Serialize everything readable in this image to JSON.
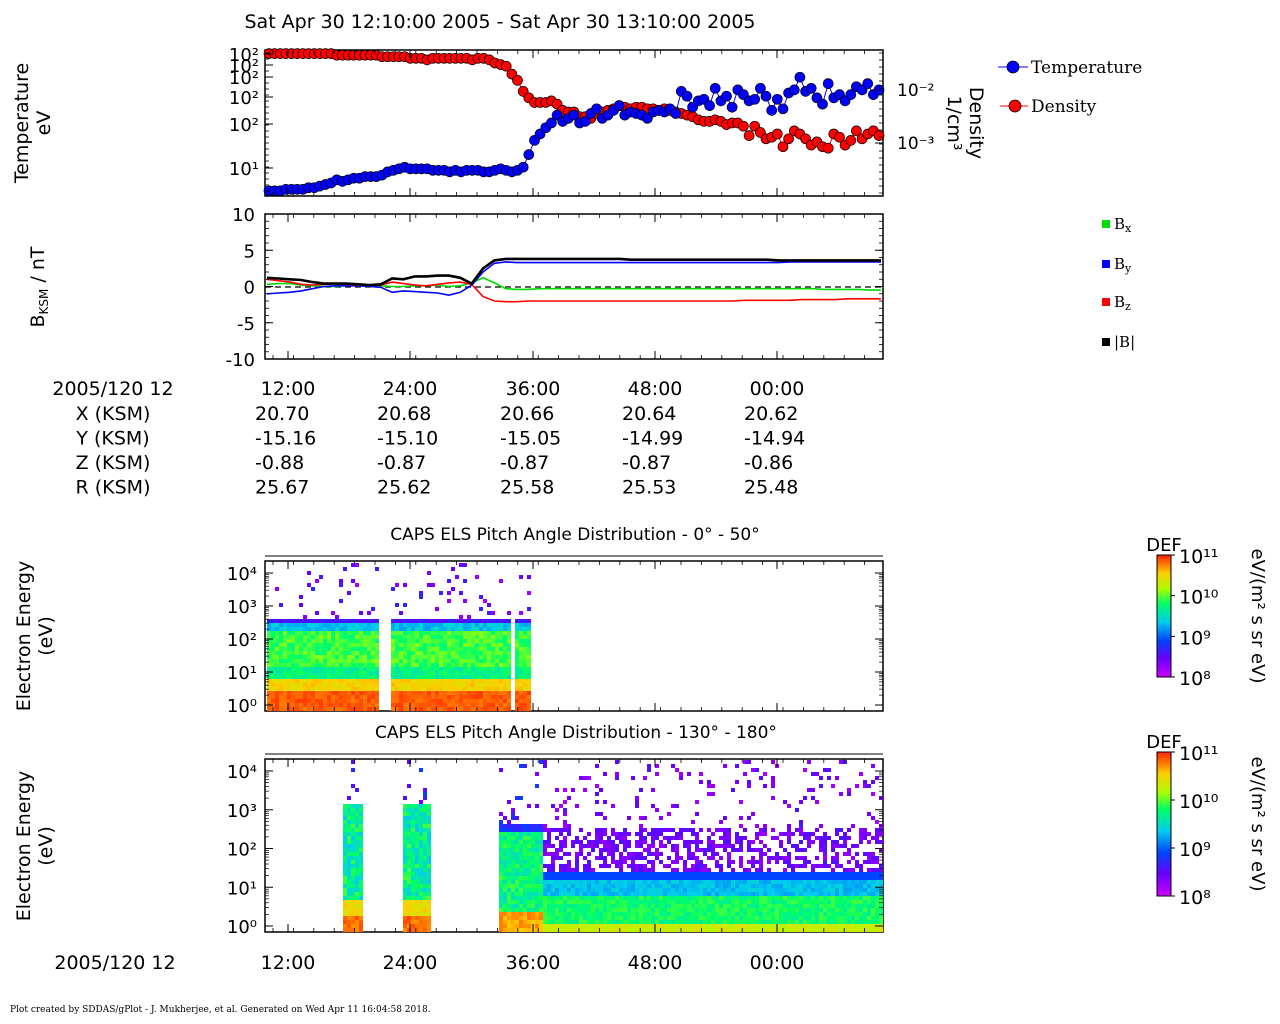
{
  "title": "Sat Apr 30 12:10:00 2005 - Sat Apr 30 13:10:00 2005",
  "footer": "Plot created by SDDAS/gPlot - J. Mukherjee, et al.  Generated on Wed Apr 11 16:04:58 2018.",
  "colors": {
    "temperature": "#0000ff",
    "density": "#ff0000",
    "bx": "#00dd00",
    "by": "#0000ff",
    "bz": "#ff0000",
    "btot": "#000000"
  },
  "ephemeris": {
    "date_label": "2005/120 12",
    "rows": [
      {
        "label": "X (KSM)",
        "values": [
          "20.70",
          "20.68",
          "20.66",
          "20.64",
          "20.62"
        ]
      },
      {
        "label": "Y (KSM)",
        "values": [
          "-15.16",
          "-15.10",
          "-15.05",
          "-14.99",
          "-14.94"
        ]
      },
      {
        "label": "Z (KSM)",
        "values": [
          "-0.88",
          "-0.87",
          "-0.87",
          "-0.87",
          "-0.86"
        ]
      },
      {
        "label": "R (KSM)",
        "values": [
          "25.67",
          "25.62",
          "25.58",
          "25.53",
          "25.48"
        ]
      }
    ]
  },
  "chart_data": [
    {
      "type": "scatter",
      "panel": "temperature-density",
      "ylabel": [
        "Temperature",
        "eV"
      ],
      "y2label": [
        "Density",
        "1/cm³"
      ],
      "yticks": [
        "10²",
        "10²",
        "10²",
        "10²",
        "10²",
        "10¹"
      ],
      "y2ticks": [
        "10⁻²",
        "10⁻³"
      ],
      "legend": [
        "Temperature",
        "Density"
      ],
      "x_minutes": [
        0,
        60
      ],
      "temperature_series": [
        1.2,
        1.2,
        1.2,
        1.3,
        1.3,
        1.3,
        1.3,
        1.4,
        1.4,
        1.5,
        1.6,
        1.7,
        1.9,
        1.8,
        1.9,
        2.0,
        2.0,
        2.1,
        2.1,
        2.1,
        2.2,
        2.4,
        2.5,
        2.6,
        2.7,
        2.6,
        2.6,
        2.6,
        2.6,
        2.5,
        2.5,
        2.5,
        2.4,
        2.5,
        2.4,
        2.5,
        2.5,
        2.5,
        2.4,
        2.4,
        2.5,
        2.6,
        2.5,
        2.4,
        2.5,
        2.7,
        3.5,
        4.4,
        4.8,
        5.2,
        5.5,
        6.0,
        5.6,
        5.8,
        6.0,
        5.5,
        5.6,
        6.1,
        6.4,
        5.8,
        6.0,
        6.3,
        6.6,
        6.0,
        6.2,
        6.1,
        6.0,
        5.8,
        6.2,
        6.3,
        6.2,
        6.4,
        6.1,
        7.5,
        7.2,
        6.5,
        6.9,
        7.0,
        6.6,
        7.7,
        6.9,
        7.2,
        6.5,
        7.6,
        7.3,
        6.9,
        7.0,
        7.7,
        7.2,
        6.3,
        7.0,
        6.4,
        7.4,
        7.6,
        8.4,
        7.5,
        7.7,
        7.1,
        6.7,
        8.0,
        7.1,
        7.3,
        6.9,
        7.3,
        7.8,
        7.6,
        8.0,
        7.3,
        7.6
      ],
      "density_series": [
        9.9,
        9.9,
        9.9,
        9.9,
        9.9,
        9.9,
        9.9,
        9.9,
        9.9,
        9.9,
        9.9,
        9.9,
        9.8,
        9.8,
        9.8,
        9.8,
        9.8,
        9.8,
        9.8,
        9.8,
        9.7,
        9.7,
        9.7,
        9.7,
        9.7,
        9.6,
        9.6,
        9.6,
        9.5,
        9.6,
        9.6,
        9.6,
        9.6,
        9.6,
        9.6,
        9.6,
        9.5,
        9.6,
        9.6,
        9.5,
        9.3,
        9.2,
        9.1,
        8.6,
        8.2,
        7.5,
        7.1,
        6.8,
        6.8,
        6.8,
        6.9,
        6.7,
        6.3,
        6.2,
        6.2,
        5.9,
        5.9,
        5.8,
        6.1,
        6.2,
        6.3,
        6.4,
        6.6,
        6.5,
        6.4,
        6.5,
        6.5,
        6.4,
        6.4,
        6.3,
        6.4,
        6.3,
        6.2,
        6.1,
        6.0,
        5.9,
        5.7,
        5.6,
        5.6,
        5.7,
        5.6,
        5.4,
        5.5,
        5.5,
        5.3,
        4.7,
        5.3,
        4.9,
        4.5,
        4.6,
        4.8,
        4.0,
        4.5,
        5.0,
        4.8,
        4.5,
        4.1,
        4.3,
        4.0,
        3.9,
        4.8,
        4.6,
        4.1,
        4.4,
        5.0,
        4.5,
        4.8,
        5.0,
        4.7
      ]
    },
    {
      "type": "line",
      "panel": "magnetic-field",
      "ylabel": "BKSM / nT",
      "ylim": [
        -10,
        10
      ],
      "yticks": [
        "10",
        "5",
        "0",
        "-5",
        "-10"
      ],
      "series": [
        {
          "name": "Bx",
          "values": [
            0.3,
            0.4,
            0.4,
            0.2,
            0.1,
            0.0,
            0.0,
            0.1,
            0.2,
            0.1,
            0.1,
            0.0,
            0.0,
            0.1,
            0.1,
            0.2,
            0.0,
            0.1,
            0.5,
            1.2,
            0.5,
            -0.3,
            -0.4,
            -0.4,
            -0.3,
            -0.3,
            -0.3,
            -0.3,
            -0.3,
            -0.3,
            -0.3,
            -0.3,
            -0.3,
            -0.3,
            -0.3,
            -0.3,
            -0.3,
            -0.3,
            -0.3,
            -0.3,
            -0.3,
            -0.3,
            -0.3,
            -0.3,
            -0.3,
            -0.3,
            -0.3,
            -0.3,
            -0.3,
            -0.4,
            -0.4,
            -0.4,
            -0.4,
            -0.5,
            -0.5
          ]
        },
        {
          "name": "By",
          "values": [
            -1.0,
            -0.9,
            -0.8,
            -0.6,
            -0.3,
            0.0,
            0.1,
            0.1,
            0.1,
            0.0,
            -0.1,
            -0.8,
            -0.6,
            -0.7,
            -0.8,
            -0.9,
            -1.2,
            -0.8,
            0.2,
            2.0,
            3.2,
            3.4,
            3.3,
            3.3,
            3.3,
            3.3,
            3.3,
            3.3,
            3.3,
            3.3,
            3.3,
            3.3,
            3.3,
            3.3,
            3.3,
            3.3,
            3.3,
            3.3,
            3.3,
            3.3,
            3.3,
            3.3,
            3.3,
            3.3,
            3.3,
            3.3,
            3.4,
            3.4,
            3.4,
            3.4,
            3.4,
            3.4,
            3.4,
            3.4,
            3.4
          ]
        },
        {
          "name": "Bz",
          "values": [
            1.0,
            0.8,
            0.6,
            0.3,
            0.2,
            0.3,
            0.4,
            0.3,
            0.2,
            0.2,
            0.2,
            0.6,
            0.4,
            0.2,
            0.1,
            0.3,
            0.5,
            0.6,
            0.3,
            -1.4,
            -2.0,
            -2.1,
            -2.1,
            -2.0,
            -2.0,
            -2.0,
            -2.0,
            -2.0,
            -2.0,
            -2.0,
            -2.0,
            -2.0,
            -2.0,
            -2.0,
            -2.0,
            -2.0,
            -2.0,
            -2.0,
            -2.0,
            -2.0,
            -2.0,
            -2.0,
            -1.9,
            -1.9,
            -1.9,
            -1.9,
            -1.9,
            -1.8,
            -1.8,
            -1.8,
            -1.8,
            -1.7,
            -1.7,
            -1.7,
            -1.7
          ]
        },
        {
          "name": "|B|",
          "values": [
            1.2,
            1.1,
            1.0,
            0.9,
            0.6,
            0.4,
            0.4,
            0.4,
            0.3,
            0.2,
            0.3,
            1.1,
            1.0,
            1.4,
            1.4,
            1.5,
            1.5,
            1.2,
            0.4,
            2.5,
            3.6,
            3.8,
            3.8,
            3.8,
            3.8,
            3.8,
            3.8,
            3.8,
            3.8,
            3.8,
            3.8,
            3.8,
            3.7,
            3.7,
            3.7,
            3.7,
            3.7,
            3.7,
            3.7,
            3.7,
            3.7,
            3.7,
            3.7,
            3.7,
            3.7,
            3.6,
            3.6,
            3.6,
            3.6,
            3.6,
            3.6,
            3.6,
            3.6,
            3.6,
            3.6
          ]
        }
      ]
    },
    {
      "type": "heatmap",
      "panel": "els-0-50",
      "title": "CAPS ELS Pitch Angle Distribution - 0° - 50°",
      "ylabel": [
        "Electron Energy",
        "(eV)"
      ],
      "yticks": [
        "10⁴",
        "10³",
        "10²",
        "10¹",
        "10⁰"
      ],
      "colorbar": {
        "label": "DEF",
        "unit": "eV/(m² s sr eV)",
        "ticks": [
          "10¹¹",
          "10¹⁰",
          "10⁹",
          "10⁸"
        ]
      }
    },
    {
      "type": "heatmap",
      "panel": "els-130-180",
      "title": "CAPS ELS Pitch Angle Distribution - 130° - 180°",
      "ylabel": [
        "Electron Energy",
        "(eV)"
      ],
      "yticks": [
        "10⁴",
        "10³",
        "10²",
        "10¹",
        "10⁰"
      ],
      "colorbar": {
        "label": "DEF",
        "unit": "eV/(m² s sr eV)",
        "ticks": [
          "10¹¹",
          "10¹⁰",
          "10⁹",
          "10⁸"
        ]
      }
    }
  ],
  "xaxis": {
    "date_label": "2005/120 12",
    "ticks": [
      "12:00",
      "24:00",
      "36:00",
      "48:00",
      "00:00"
    ]
  }
}
